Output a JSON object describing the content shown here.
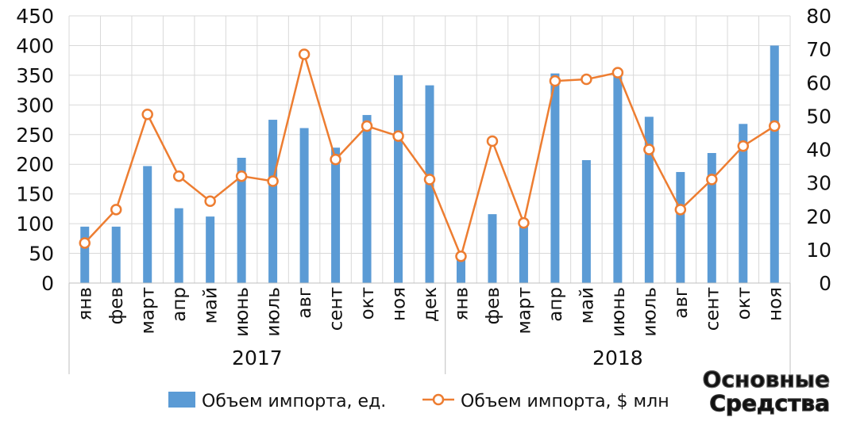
{
  "chart_data": {
    "type": "bar+line",
    "categories": [
      "янв",
      "фев",
      "март",
      "апр",
      "май",
      "июнь",
      "июль",
      "авг",
      "сент",
      "окт",
      "ноя",
      "дек",
      "янв",
      "фев",
      "март",
      "апр",
      "май",
      "июнь",
      "июль",
      "авг",
      "сент",
      "окт",
      "ноя"
    ],
    "groups": [
      {
        "label": "2017",
        "count": 12
      },
      {
        "label": "2018",
        "count": 11
      }
    ],
    "series": [
      {
        "name": "Объем импорта, ед.",
        "type": "bar",
        "axis": "left",
        "color": "#5b9bd5",
        "values": [
          95,
          95,
          197,
          126,
          112,
          211,
          275,
          261,
          228,
          283,
          350,
          333,
          40,
          116,
          108,
          353,
          207,
          350,
          280,
          187,
          219,
          268,
          400
        ]
      },
      {
        "name": "Объем импорта, $ млн",
        "type": "line",
        "axis": "right",
        "color": "#ed7d31",
        "values": [
          12,
          22,
          50.5,
          32,
          24.5,
          32,
          30.5,
          68.5,
          37,
          47,
          44,
          31,
          8,
          42.5,
          18,
          60.5,
          61,
          63,
          40,
          22,
          31,
          41,
          47
        ]
      }
    ],
    "y_left": {
      "min": 0,
      "max": 450,
      "step": 50
    },
    "y_right": {
      "min": 0,
      "max": 80,
      "step": 10
    },
    "grid": true,
    "legend_position": "bottom",
    "watermark": "Основные Средства"
  }
}
